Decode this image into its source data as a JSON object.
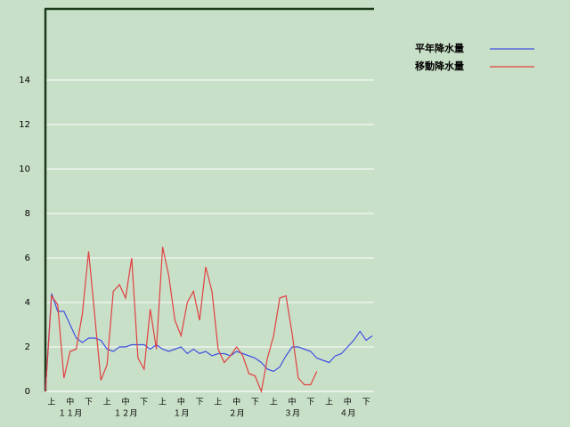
{
  "chart_data": {
    "type": "line",
    "categories": [
      null,
      "上",
      null,
      null,
      "中",
      null,
      null,
      "下",
      null,
      null,
      "上",
      null,
      null,
      "中",
      null,
      null,
      "下",
      null,
      null,
      "上",
      null,
      null,
      "中",
      null,
      null,
      "下",
      null,
      null,
      "上",
      null,
      null,
      "中",
      null,
      null,
      "下",
      null,
      null,
      "上",
      null,
      null,
      "中",
      null,
      null,
      "下",
      null,
      null,
      "上",
      null,
      null,
      "中",
      null,
      null,
      "下",
      null
    ],
    "month_labels": [
      null,
      null,
      null,
      null,
      "１１月",
      null,
      null,
      null,
      null,
      null,
      null,
      null,
      null,
      "１２月",
      null,
      null,
      null,
      null,
      null,
      null,
      null,
      null,
      "１月",
      null,
      null,
      null,
      null,
      null,
      null,
      null,
      null,
      "２月",
      null,
      null,
      null,
      null,
      null,
      null,
      null,
      null,
      "３月",
      null,
      null,
      null,
      null,
      null,
      null,
      null,
      null,
      "４月",
      null,
      null,
      null,
      null
    ],
    "series": [
      {
        "name": "平年降水量",
        "color": "#4050e0",
        "values": [
          0,
          4.4,
          3.6,
          3.6,
          3.0,
          2.4,
          2.2,
          2.4,
          2.4,
          2.3,
          1.9,
          1.8,
          2.0,
          2.0,
          2.1,
          2.1,
          2.1,
          1.9,
          2.1,
          1.9,
          1.8,
          1.9,
          2.0,
          1.7,
          1.9,
          1.7,
          1.8,
          1.6,
          1.7,
          1.7,
          1.6,
          1.8,
          1.7,
          1.6,
          1.5,
          1.3,
          1.0,
          0.9,
          1.1,
          1.6,
          2.0,
          2.0,
          1.9,
          1.8,
          1.5,
          1.4,
          1.3,
          1.6,
          1.7,
          2.0,
          2.3,
          2.7,
          2.3,
          2.5
        ]
      },
      {
        "name": "移動降水量",
        "color": "#e04040",
        "values": [
          0,
          4.3,
          3.9,
          0.6,
          1.8,
          1.9,
          3.5,
          6.3,
          3.4,
          0.5,
          1.2,
          4.5,
          4.8,
          4.2,
          6.0,
          1.5,
          1.0,
          3.7,
          1.9,
          6.5,
          5.2,
          3.2,
          2.5,
          4.0,
          4.5,
          3.2,
          5.6,
          4.5,
          1.9,
          1.3,
          1.6,
          2.0,
          1.6,
          0.8,
          0.7,
          0.0,
          1.5,
          2.5,
          4.2,
          4.3,
          2.6,
          0.6,
          0.3,
          0.3,
          0.9,
          null,
          null,
          null,
          null,
          null,
          null,
          null,
          null,
          null
        ]
      }
    ],
    "ylim": [
      0,
      17.2
    ],
    "yticks": [
      0,
      2,
      4,
      6,
      8,
      10,
      12,
      14
    ],
    "grid": true
  }
}
